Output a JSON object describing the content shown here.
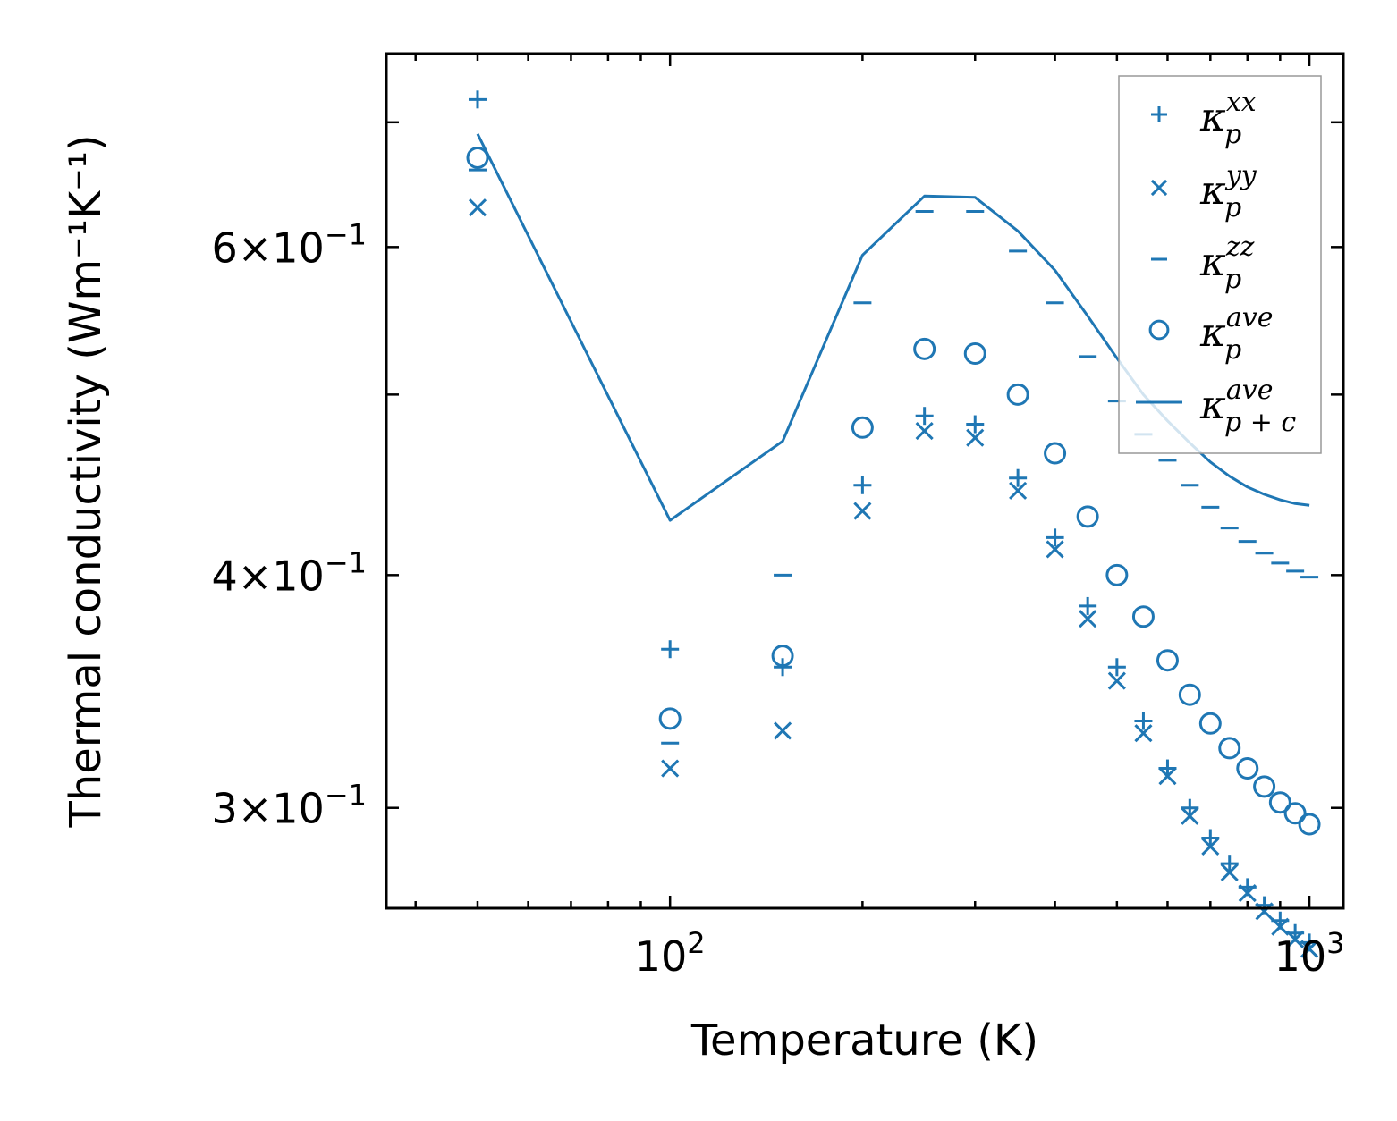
{
  "chart_data": {
    "type": "scatter",
    "xscale": "log",
    "yscale": "log",
    "xlabel": "Temperature (K)",
    "ylabel": "Thermal conductivity (Wm⁻¹K⁻¹)",
    "xlim": [
      36,
      1130
    ],
    "ylim": [
      0.265,
      0.762
    ],
    "x_ticks": [
      {
        "value": 100,
        "base": "10",
        "exp": "2"
      },
      {
        "value": 1000,
        "base": "10",
        "exp": "3"
      }
    ],
    "y_ticks": [
      {
        "value": 0.3,
        "mant": "3",
        "base": "10",
        "exp": "−1"
      },
      {
        "value": 0.4,
        "mant": "4",
        "base": "10",
        "exp": "−1"
      },
      {
        "value": 0.6,
        "mant": "6",
        "base": "10",
        "exp": "−1"
      }
    ],
    "color": "#1f77b4",
    "series": [
      {
        "name": "kxx",
        "sym": "κ",
        "sub": "p",
        "sup": "xx",
        "marker": "plus",
        "x": [
          50,
          100,
          150,
          200,
          250,
          300,
          350,
          400,
          450,
          500,
          550,
          600,
          650,
          700,
          750,
          800,
          850,
          900,
          950,
          1000
        ],
        "y": [
          0.72,
          0.365,
          0.357,
          0.447,
          0.487,
          0.482,
          0.451,
          0.419,
          0.385,
          0.357,
          0.334,
          0.315,
          0.3,
          0.289,
          0.28,
          0.272,
          0.266,
          0.261,
          0.257,
          0.254
        ]
      },
      {
        "name": "kyy",
        "sym": "κ",
        "sub": "p",
        "sup": "yy",
        "marker": "x",
        "x": [
          50,
          100,
          150,
          200,
          250,
          300,
          350,
          400,
          450,
          500,
          550,
          600,
          650,
          700,
          750,
          800,
          850,
          900,
          950,
          1000
        ],
        "y": [
          0.63,
          0.315,
          0.33,
          0.433,
          0.478,
          0.474,
          0.444,
          0.413,
          0.379,
          0.351,
          0.329,
          0.312,
          0.297,
          0.286,
          0.277,
          0.27,
          0.264,
          0.259,
          0.255,
          0.252
        ]
      },
      {
        "name": "kzz",
        "sym": "κ",
        "sub": "p",
        "sup": "zz",
        "marker": "hline",
        "x": [
          50,
          100,
          150,
          200,
          250,
          300,
          350,
          400,
          450,
          500,
          550,
          600,
          650,
          700,
          750,
          800,
          850,
          900,
          950,
          1000
        ],
        "y": [
          0.66,
          0.325,
          0.4,
          0.56,
          0.627,
          0.627,
          0.597,
          0.56,
          0.524,
          0.496,
          0.476,
          0.461,
          0.447,
          0.435,
          0.424,
          0.417,
          0.411,
          0.406,
          0.402,
          0.399
        ]
      },
      {
        "name": "kave",
        "sym": "κ",
        "sub": "p",
        "sup": "ave",
        "marker": "circle",
        "x": [
          50,
          100,
          150,
          200,
          250,
          300,
          350,
          400,
          450,
          500,
          550,
          600,
          650,
          700,
          750,
          800,
          850,
          900,
          950,
          1000
        ],
        "y": [
          0.67,
          0.335,
          0.362,
          0.48,
          0.529,
          0.526,
          0.5,
          0.465,
          0.43,
          0.4,
          0.38,
          0.36,
          0.345,
          0.333,
          0.323,
          0.315,
          0.308,
          0.302,
          0.298,
          0.294
        ]
      },
      {
        "name": "kpc",
        "sym": "κ",
        "sub": "p + c",
        "sup": "ave",
        "marker": "line",
        "x": [
          50,
          100,
          150,
          200,
          250,
          300,
          350,
          400,
          450,
          500,
          550,
          600,
          650,
          700,
          750,
          800,
          850,
          900,
          950,
          1000
        ],
        "y": [
          0.69,
          0.428,
          0.472,
          0.594,
          0.639,
          0.638,
          0.612,
          0.583,
          0.551,
          0.523,
          0.5,
          0.484,
          0.471,
          0.46,
          0.452,
          0.446,
          0.442,
          0.439,
          0.437,
          0.436
        ]
      }
    ],
    "legend_position": "top-right"
  }
}
